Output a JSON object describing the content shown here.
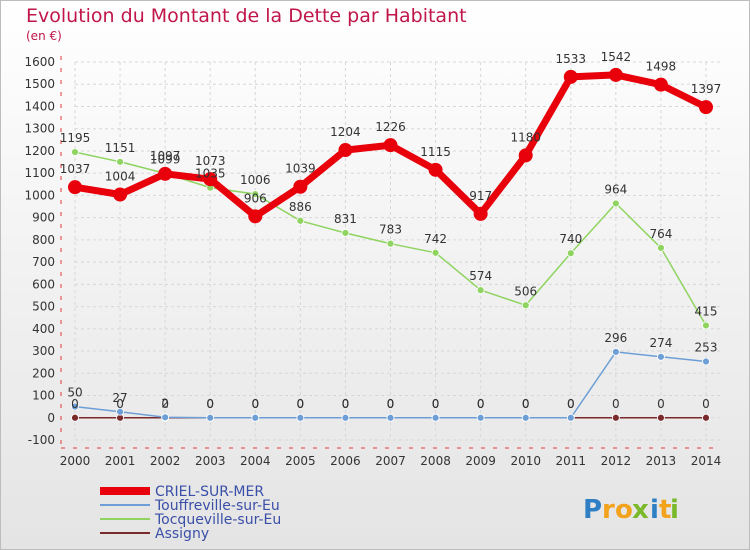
{
  "title": "Evolution du Montant de la Dette par Habitant",
  "unit": "(en €)",
  "logo": {
    "letters": [
      "P",
      "r",
      "o",
      "x",
      "i",
      "t",
      "i"
    ],
    "colors": [
      "#2e7fc4",
      "#f2a21b",
      "#f2a21b",
      "#7ab929",
      "#2e7fc4",
      "#f2a21b",
      "#7ab929"
    ]
  },
  "chart_data": {
    "type": "line",
    "title": "Evolution du Montant de la Dette par Habitant",
    "ylabel": "(en €)",
    "x": [
      "2000",
      "2001",
      "2002",
      "2003",
      "2004",
      "2005",
      "2006",
      "2007",
      "2008",
      "2009",
      "2010",
      "2011",
      "2012",
      "2013",
      "2014"
    ],
    "ylim": [
      -100,
      1600
    ],
    "yticks": [
      -100,
      0,
      100,
      200,
      300,
      400,
      500,
      600,
      700,
      800,
      900,
      1000,
      1100,
      1200,
      1300,
      1400,
      1500,
      1600
    ],
    "grid": true,
    "legend": "bottom-left",
    "series": [
      {
        "name": "CRIEL-SUR-MER",
        "color": "#e8000b",
        "values": [
          1037,
          1004,
          1097,
          1073,
          906,
          1039,
          1204,
          1226,
          1115,
          917,
          1180,
          1533,
          1542,
          1498,
          1397
        ]
      },
      {
        "name": "Touffreville-sur-Eu",
        "color": "#6d9fd6",
        "values": [
          50,
          27,
          2,
          0,
          0,
          0,
          0,
          0,
          0,
          0,
          0,
          0,
          296,
          274,
          253
        ]
      },
      {
        "name": "Tocqueville-sur-Eu",
        "color": "#8fd460",
        "values": [
          1195,
          1151,
          1099,
          1035,
          1006,
          886,
          831,
          783,
          742,
          574,
          506,
          740,
          964,
          764,
          415
        ]
      },
      {
        "name": "Assigny",
        "color": "#7a2a2a",
        "values": [
          0,
          0,
          0,
          0,
          0,
          0,
          0,
          0,
          0,
          0,
          0,
          0,
          0,
          0,
          0
        ]
      }
    ]
  }
}
